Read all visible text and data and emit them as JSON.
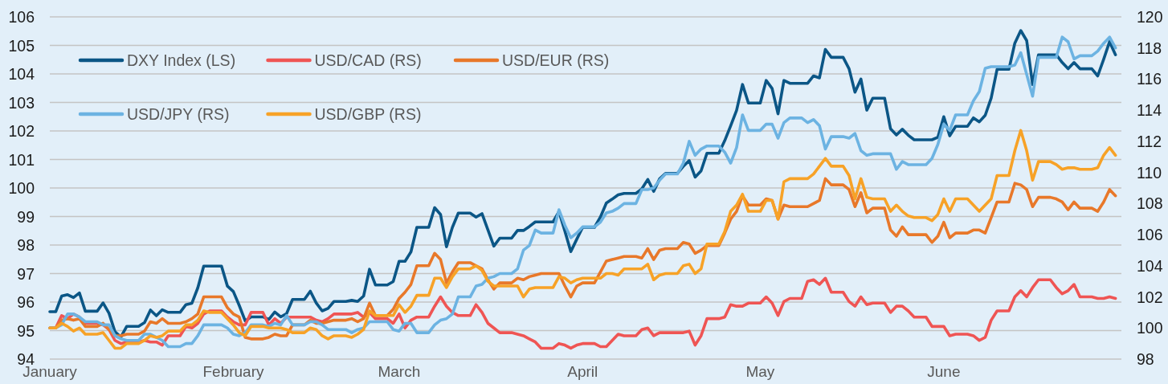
{
  "chart_data": {
    "type": "line",
    "x": [
      "--01-01",
      "--01-02",
      "--01-03",
      "--01-04",
      "--01-05",
      "--01-06",
      "--01-07",
      "--01-09",
      "--01-10",
      "--01-11",
      "--01-12",
      "--01-13",
      "--01-14",
      "--01-16",
      "--01-17",
      "--01-18",
      "--01-19",
      "--01-20",
      "--01-21",
      "--01-23",
      "--01-24",
      "--01-25",
      "--01-26",
      "--01-27",
      "--01-28",
      "--01-30",
      "--01-31",
      "--02-01",
      "--02-02",
      "--02-03",
      "--02-04",
      "--02-06",
      "--02-07",
      "--02-08",
      "--02-09",
      "--02-10",
      "--02-11",
      "--02-13",
      "--02-14",
      "--02-15",
      "--02-16",
      "--02-17",
      "--02-18",
      "--02-20",
      "--02-21",
      "--02-22",
      "--02-23",
      "--02-24",
      "--02-25",
      "--02-27",
      "--02-28",
      "--03-01",
      "--03-02",
      "--03-03",
      "--03-04",
      "--03-06",
      "--03-07",
      "--03-08",
      "--03-09",
      "--03-10",
      "--03-11",
      "--03-13",
      "--03-14",
      "--03-15",
      "--03-16",
      "--03-17",
      "--03-18",
      "--03-20",
      "--03-21",
      "--03-22",
      "--03-23",
      "--03-24",
      "--03-25",
      "--03-27",
      "--03-28",
      "--03-29",
      "--03-30",
      "--03-31",
      "--04-01",
      "--04-03",
      "--04-04",
      "--04-05",
      "--04-06",
      "--04-07",
      "--04-08",
      "--04-10",
      "--04-11",
      "--04-12",
      "--04-13",
      "--04-14",
      "--04-15",
      "--04-17",
      "--04-18",
      "--04-19",
      "--04-20",
      "--04-21",
      "--04-22",
      "--04-24",
      "--04-25",
      "--04-26",
      "--04-27",
      "--04-28",
      "--04-29",
      "--05-01",
      "--05-02",
      "--05-03",
      "--05-04",
      "--05-05",
      "--05-06",
      "--05-08",
      "--05-09",
      "--05-10",
      "--05-11",
      "--05-12",
      "--05-13",
      "--05-15",
      "--05-16",
      "--05-17",
      "--05-18",
      "--05-19",
      "--05-20",
      "--05-22",
      "--05-23",
      "--05-24",
      "--05-25",
      "--05-26",
      "--05-27",
      "--05-29",
      "--05-30",
      "--05-31",
      "--06-01",
      "--06-02",
      "--06-03",
      "--06-05",
      "--06-06",
      "--06-07",
      "--06-08",
      "--06-09",
      "--06-10",
      "--06-12",
      "--06-13",
      "--06-14",
      "--06-15",
      "--06-16",
      "--06-17",
      "--06-19",
      "--06-20",
      "--06-21",
      "--06-22",
      "--06-23",
      "--06-24",
      "--06-26",
      "--06-27",
      "--06-28",
      "--06-29",
      "--06-30"
    ],
    "xlim": [
      "--01-01",
      "--07-01"
    ],
    "xticks": [
      {
        "value": "--01-01",
        "label": "January"
      },
      {
        "value": "--02-01",
        "label": "February"
      },
      {
        "value": "--03-01",
        "label": "March"
      },
      {
        "value": "--04-01",
        "label": "April"
      },
      {
        "value": "--05-01",
        "label": "May"
      },
      {
        "value": "--06-01",
        "label": "June"
      }
    ],
    "ylim": [
      94,
      106
    ],
    "yticks": [
      94,
      95,
      96,
      97,
      98,
      99,
      100,
      101,
      102,
      103,
      104,
      105,
      106
    ],
    "y2lim": [
      98,
      120
    ],
    "y2ticks": [
      98,
      100,
      102,
      104,
      106,
      108,
      110,
      112,
      114,
      116,
      118,
      120
    ],
    "grid": "y",
    "legend": "top left",
    "series": [
      {
        "name": "DXY Index (LS)",
        "color": "#0b5686",
        "values": [
          95.66,
          95.66,
          96.21,
          96.26,
          96.16,
          96.32,
          95.68,
          95.68,
          95.97,
          95.61,
          94.96,
          94.77,
          95.15,
          95.15,
          95.28,
          95.72,
          95.52,
          95.73,
          95.64,
          95.64,
          95.91,
          95.96,
          96.5,
          97.26,
          97.26,
          97.26,
          96.56,
          96.37,
          95.88,
          95.34,
          95.48,
          95.48,
          95.39,
          95.65,
          95.48,
          95.6,
          96.09,
          96.09,
          96.38,
          95.97,
          95.69,
          95.78,
          96.02,
          96.02,
          96.06,
          96.02,
          96.21,
          97.15,
          96.6,
          96.6,
          96.72,
          97.43,
          97.43,
          97.76,
          98.62,
          98.62,
          99.31,
          99.07,
          97.94,
          98.62,
          99.12,
          99.12,
          98.98,
          99.1,
          98.53,
          97.96,
          98.24,
          98.24,
          98.51,
          98.51,
          98.65,
          98.81,
          98.81,
          98.81,
          99.17,
          98.49,
          97.77,
          98.2,
          98.62,
          98.62,
          98.98,
          99.47,
          99.61,
          99.76,
          99.81,
          99.81,
          99.97,
          100.3,
          99.88,
          100.32,
          100.51,
          100.51,
          100.76,
          100.96,
          100.38,
          100.6,
          101.22,
          101.22,
          101.66,
          102.18,
          102.72,
          103.63,
          102.98,
          102.98,
          103.77,
          103.49,
          102.6,
          103.77,
          103.67,
          103.67,
          103.67,
          103.93,
          103.86,
          104.86,
          104.58,
          104.58,
          104.18,
          103.36,
          103.82,
          102.73,
          103.15,
          103.15,
          102.08,
          101.86,
          102.06,
          101.85,
          101.69,
          101.69,
          101.69,
          101.78,
          102.5,
          101.83,
          102.16,
          102.16,
          102.46,
          102.32,
          102.55,
          103.15,
          104.16,
          104.16,
          105.08,
          105.52,
          105.17,
          103.63,
          104.67,
          104.67,
          104.67,
          104.4,
          104.18,
          104.4,
          104.18,
          104.18,
          103.93,
          104.51,
          105.13,
          104.67
        ]
      },
      {
        "name": "USD/CAD (RS)",
        "color": "#ef5554",
        "axis": "y2",
        "values": [
          100,
          100,
          100.8,
          100.6,
          100.9,
          100.7,
          100.3,
          100.3,
          100.2,
          99.9,
          99.2,
          99.0,
          99.1,
          99.1,
          99.2,
          99.1,
          99.1,
          98.9,
          99.5,
          99.5,
          100.1,
          100.0,
          100.3,
          100.9,
          101.1,
          101.1,
          100.7,
          100.4,
          100.2,
          100.2,
          101.0,
          101.0,
          100.2,
          100.6,
          100.3,
          100.7,
          100.7,
          100.7,
          100.7,
          100.5,
          100.4,
          100.6,
          100.9,
          100.9,
          100.9,
          101.0,
          100.7,
          101.0,
          100.6,
          100.6,
          100.3,
          100.9,
          100.0,
          100.5,
          100.7,
          100.7,
          101.4,
          102.0,
          101.4,
          101.0,
          100.8,
          100.8,
          101.5,
          101.0,
          100.3,
          100.0,
          99.7,
          99.7,
          99.6,
          99.5,
          99.3,
          99.1,
          98.7,
          98.7,
          99.0,
          98.9,
          98.7,
          98.9,
          99.0,
          99.0,
          98.8,
          98.8,
          99.2,
          99.6,
          99.5,
          99.5,
          99.9,
          100.0,
          99.5,
          99.7,
          99.7,
          99.7,
          99.7,
          99.8,
          98.9,
          99.5,
          100.6,
          100.6,
          100.7,
          101.5,
          101.4,
          101.4,
          101.6,
          101.6,
          102.0,
          101.6,
          100.8,
          101.7,
          101.9,
          101.9,
          103.0,
          103.1,
          102.8,
          103.2,
          102.3,
          102.3,
          101.7,
          101.4,
          102.0,
          101.5,
          101.6,
          101.6,
          101.0,
          101.4,
          101.4,
          101.1,
          100.7,
          100.7,
          100.1,
          100.1,
          100.1,
          99.5,
          99.6,
          99.6,
          99.5,
          99.2,
          99.4,
          100.5,
          101.1,
          101.1,
          102.0,
          102.4,
          102.0,
          102.6,
          103.1,
          103.1,
          102.6,
          102.2,
          102.4,
          102.8,
          102.0,
          102.0,
          101.9,
          101.9,
          102.0,
          101.9
        ]
      },
      {
        "name": "USD/EUR (RS)",
        "color": "#e8782a",
        "axis": "y2",
        "values": [
          100,
          100,
          100.5,
          100.6,
          100.5,
          100.6,
          100.1,
          100.1,
          100.3,
          99.9,
          99.5,
          99.5,
          99.6,
          99.6,
          99.8,
          100.4,
          100.3,
          100.6,
          100.3,
          100.3,
          100.4,
          100.6,
          100.9,
          102.0,
          102.0,
          102.0,
          101.3,
          100.9,
          100.7,
          99.4,
          99.3,
          99.3,
          99.4,
          99.6,
          99.5,
          99.5,
          100.2,
          100.2,
          100.5,
          100.3,
          100.3,
          100.4,
          100.5,
          100.5,
          100.6,
          100.4,
          100.6,
          101.6,
          100.8,
          100.8,
          101.2,
          101.9,
          102.3,
          102.8,
          104.0,
          104.0,
          104.8,
          104.4,
          102.9,
          103.6,
          104.2,
          104.2,
          104.0,
          103.8,
          103.1,
          102.5,
          102.9,
          102.9,
          103.2,
          103.1,
          103.3,
          103.4,
          103.5,
          103.5,
          103.5,
          102.7,
          102.0,
          102.7,
          102.9,
          102.9,
          103.6,
          104.3,
          104.4,
          104.5,
          104.6,
          104.6,
          104.5,
          105.1,
          104.4,
          105.0,
          105.1,
          105.1,
          105.5,
          105.4,
          104.8,
          105.0,
          105.3,
          105.3,
          106.1,
          107.0,
          107.5,
          108.5,
          107.9,
          107.9,
          108.3,
          108.2,
          107.0,
          107.9,
          107.8,
          107.8,
          107.8,
          108.0,
          108.2,
          109.6,
          109.2,
          109.2,
          108.9,
          107.8,
          108.7,
          107.4,
          107.7,
          107.7,
          106.3,
          105.9,
          106.5,
          106.0,
          106.0,
          106.0,
          105.5,
          105.9,
          106.8,
          105.8,
          106.1,
          106.1,
          106.3,
          106.3,
          106.1,
          107.1,
          108.1,
          108.1,
          109.3,
          109.2,
          108.9,
          107.8,
          108.4,
          108.4,
          108.3,
          108.1,
          107.6,
          108.1,
          107.7,
          107.7,
          107.5,
          108.1,
          108.9,
          108.5
        ]
      },
      {
        "name": "USD/JPY (RS)",
        "color": "#6cb3e2",
        "axis": "y2",
        "values": [
          100,
          100,
          100.2,
          100.9,
          100.9,
          100.7,
          100.4,
          100.4,
          100.2,
          100.2,
          99.5,
          99.3,
          99.2,
          99.2,
          99.6,
          99.6,
          99.4,
          99.2,
          98.8,
          98.8,
          99.0,
          99.0,
          99.5,
          100.2,
          100.2,
          100.2,
          100.0,
          99.6,
          99.5,
          99.7,
          100.2,
          100.2,
          100.1,
          100.3,
          100.2,
          100.8,
          100.2,
          100.2,
          100.4,
          100.4,
          100.2,
          99.9,
          99.9,
          99.9,
          99.7,
          99.9,
          100.0,
          100.4,
          100.4,
          100.4,
          99.9,
          99.8,
          100.3,
          100.3,
          99.7,
          99.7,
          100.2,
          100.5,
          100.6,
          100.9,
          102.0,
          102.0,
          102.7,
          102.8,
          103.2,
          103.3,
          103.5,
          103.5,
          103.8,
          105.0,
          105.3,
          106.3,
          106.1,
          106.1,
          107.6,
          106.6,
          105.8,
          106.1,
          106.5,
          106.5,
          106.8,
          107.4,
          107.5,
          107.7,
          108.0,
          108.0,
          108.9,
          108.9,
          109.0,
          109.5,
          109.9,
          109.9,
          110.6,
          112.0,
          111.1,
          111.5,
          111.7,
          111.7,
          111.3,
          110.6,
          111.6,
          113.7,
          112.7,
          112.7,
          113.1,
          113.1,
          112.2,
          113.2,
          113.5,
          113.5,
          113.2,
          113.4,
          113.0,
          111.5,
          112.3,
          112.3,
          112.2,
          112.5,
          111.4,
          111.1,
          111.2,
          111.2,
          111.2,
          110.2,
          110.7,
          110.5,
          110.5,
          110.5,
          110.9,
          111.8,
          113.1,
          112.7,
          113.7,
          113.7,
          114.6,
          115.2,
          116.7,
          116.8,
          116.8,
          116.8,
          116.9,
          117.7,
          116.3,
          114.9,
          117.4,
          117.4,
          117.4,
          118.7,
          118.4,
          117.3,
          117.5,
          117.5,
          117.8,
          118.3,
          118.7,
          118.0
        ]
      },
      {
        "name": "USD/GBP (RS)",
        "color": "#f7a227",
        "axis": "y2",
        "values": [
          100,
          100,
          100.3,
          100.1,
          99.8,
          100.0,
          99.6,
          99.6,
          99.7,
          99.2,
          98.7,
          98.7,
          99.0,
          99.0,
          99.2,
          99.5,
          99.4,
          99.5,
          99.8,
          99.8,
          100.2,
          100.2,
          100.5,
          101.1,
          101.0,
          101.0,
          100.6,
          100.2,
          99.7,
          99.5,
          100.1,
          100.1,
          100.0,
          100.0,
          100.0,
          99.9,
          99.7,
          99.7,
          100.0,
          99.9,
          99.5,
          99.3,
          99.5,
          99.5,
          99.4,
          99.6,
          99.9,
          101.1,
          100.8,
          100.8,
          100.8,
          101.5,
          101.0,
          101.4,
          102.1,
          102.1,
          103.2,
          103.2,
          102.6,
          103.3,
          103.8,
          103.8,
          104.0,
          103.7,
          103.0,
          102.7,
          102.7,
          102.7,
          102.7,
          102.0,
          102.5,
          102.6,
          102.6,
          102.6,
          103.3,
          103.2,
          102.9,
          103.1,
          103.2,
          103.2,
          103.2,
          103.5,
          103.5,
          103.4,
          103.8,
          103.8,
          103.8,
          104.1,
          103.1,
          103.4,
          103.5,
          103.5,
          104.0,
          104.1,
          103.5,
          103.8,
          105.4,
          105.4,
          106.2,
          107.5,
          107.9,
          108.6,
          107.5,
          107.5,
          108.2,
          108.2,
          107.0,
          109.4,
          109.6,
          109.6,
          109.6,
          109.9,
          110.4,
          110.9,
          110.4,
          110.4,
          109.8,
          108.3,
          109.6,
          108.4,
          108.3,
          108.3,
          107.5,
          107.9,
          107.5,
          107.2,
          107.1,
          107.1,
          106.9,
          107.3,
          108.3,
          107.5,
          108.3,
          108.3,
          107.9,
          107.5,
          107.9,
          108.3,
          109.8,
          109.8,
          111.4,
          112.7,
          111.4,
          109.5,
          110.7,
          110.7,
          110.5,
          110.2,
          110.3,
          110.3,
          110.2,
          110.2,
          110.3,
          111.1,
          111.6,
          111.1
        ]
      }
    ]
  }
}
